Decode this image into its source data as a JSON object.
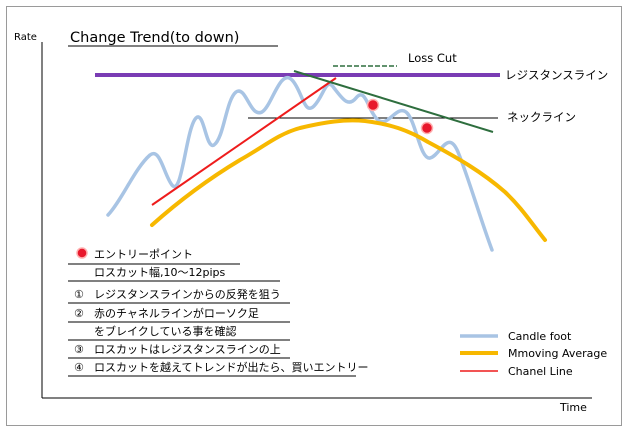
{
  "title": "Change Trend(to down)",
  "y_axis_label": "Rate",
  "x_axis_label": "Time",
  "annotations": {
    "loss_cut": "Loss Cut",
    "resistance_line": "レジスタンスライン",
    "neckline": "ネックライン"
  },
  "legend": {
    "candle_foot": "Candle foot",
    "moving_average": "Mmoving Average",
    "channel_line": "Chanel Line"
  },
  "notes": {
    "entry_point": "エントリーポイント",
    "loss_cut_width": "ロスカット幅,10～12pips",
    "items": [
      {
        "num": "①",
        "text": "レジスタンスラインからの反発を狙う"
      },
      {
        "num": "②",
        "text": "赤のチャネルラインがローソク足"
      },
      {
        "num": "",
        "text": "をブレイクしている事を確認"
      },
      {
        "num": "③",
        "text": "ロスカットはレジスタンスラインの上"
      },
      {
        "num": "④",
        "text": "ロスカットを越えてトレンドが出たら、買いエントリー"
      }
    ]
  },
  "colors": {
    "candle_foot": "#a8c4e4",
    "moving_average": "#f7b800",
    "channel_line": "#ee1c1c",
    "resistance": "#7a3cb4",
    "downtrend": "#2e6e3e",
    "entry_point": "#e8182c"
  }
}
